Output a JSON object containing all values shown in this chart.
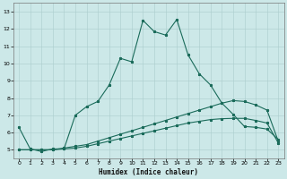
{
  "title": "",
  "xlabel": "Humidex (Indice chaleur)",
  "ylabel": "",
  "xlim": [
    -0.5,
    23.5
  ],
  "ylim": [
    4.5,
    13.5
  ],
  "xticks": [
    0,
    1,
    2,
    3,
    4,
    5,
    6,
    7,
    8,
    9,
    10,
    11,
    12,
    13,
    14,
    15,
    16,
    17,
    18,
    19,
    20,
    21,
    22,
    23
  ],
  "yticks": [
    5,
    6,
    7,
    8,
    9,
    10,
    11,
    12,
    13
  ],
  "bg_color": "#cce8e8",
  "grid_color": "#aacccc",
  "line_color": "#1a6b5a",
  "line1_x": [
    0,
    1,
    2,
    3,
    4,
    5,
    6,
    7,
    8,
    9,
    10,
    11,
    12,
    13,
    14,
    15,
    16,
    17,
    18,
    19,
    20,
    21,
    22,
    23
  ],
  "line1_y": [
    6.3,
    5.05,
    4.9,
    5.05,
    5.05,
    7.0,
    7.5,
    7.8,
    8.75,
    10.3,
    10.1,
    12.5,
    11.85,
    11.65,
    12.55,
    10.5,
    9.4,
    8.75,
    7.7,
    7.05,
    6.35,
    6.3,
    6.2,
    5.6
  ],
  "line2_x": [
    0,
    1,
    2,
    3,
    4,
    5,
    6,
    7,
    8,
    9,
    10,
    11,
    12,
    13,
    14,
    15,
    16,
    17,
    18,
    19,
    20,
    21,
    22,
    23
  ],
  "line2_y": [
    5.0,
    5.0,
    5.0,
    5.0,
    5.1,
    5.2,
    5.3,
    5.5,
    5.7,
    5.9,
    6.1,
    6.3,
    6.5,
    6.7,
    6.9,
    7.1,
    7.3,
    7.5,
    7.7,
    7.85,
    7.8,
    7.6,
    7.3,
    5.5
  ],
  "line3_x": [
    0,
    1,
    2,
    3,
    4,
    5,
    6,
    7,
    8,
    9,
    10,
    11,
    12,
    13,
    14,
    15,
    16,
    17,
    18,
    19,
    20,
    21,
    22,
    23
  ],
  "line3_y": [
    5.0,
    5.0,
    5.0,
    5.0,
    5.05,
    5.1,
    5.2,
    5.35,
    5.5,
    5.65,
    5.8,
    5.95,
    6.1,
    6.25,
    6.4,
    6.55,
    6.65,
    6.75,
    6.8,
    6.82,
    6.82,
    6.7,
    6.55,
    5.4
  ],
  "xlabel_fontsize": 5.5,
  "tick_fontsize": 4.5,
  "linewidth": 0.8,
  "markersize": 2.0
}
